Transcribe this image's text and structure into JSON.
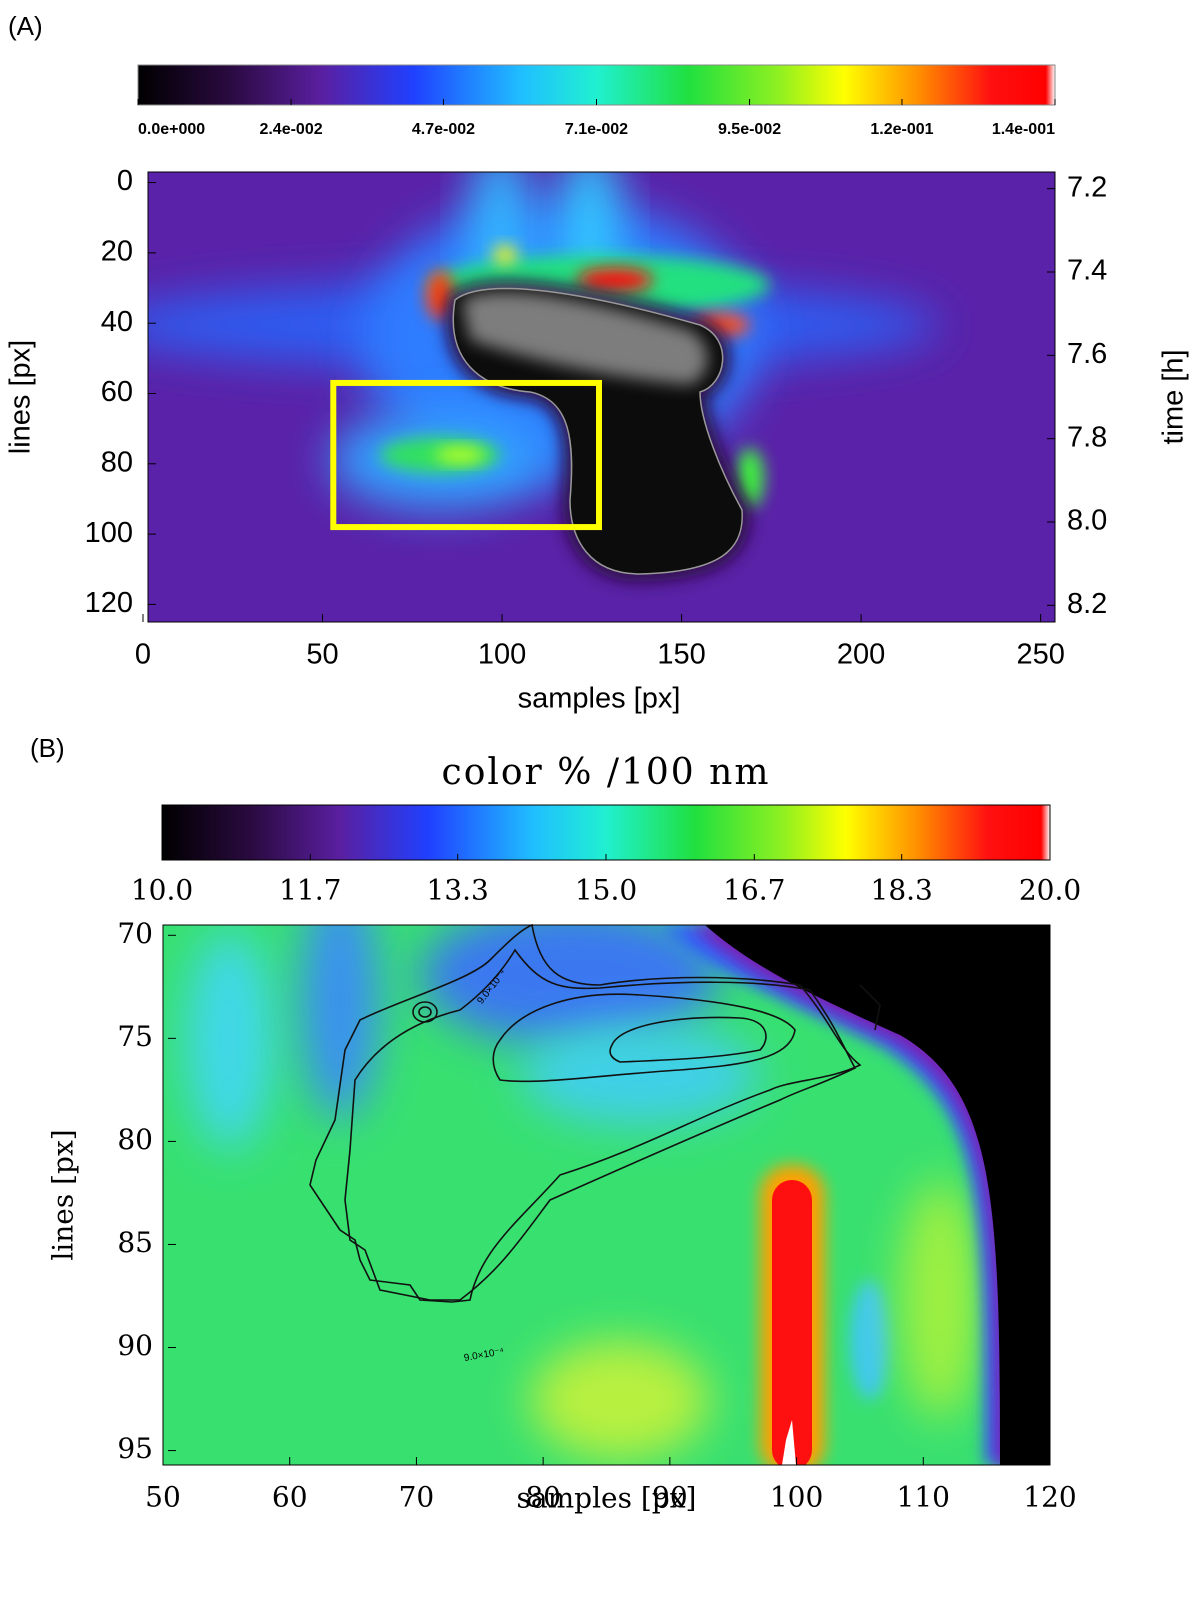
{
  "chart_data": [
    {
      "type": "heatmap",
      "panel_label": "(A)",
      "colorbar": {
        "clim": [
          0,
          0.142
        ],
        "ticks": [
          {
            "value": 0,
            "label": "0.0e+000"
          },
          {
            "value": 0.0237,
            "label": "2.4e-002"
          },
          {
            "value": 0.0473,
            "label": "4.7e-002"
          },
          {
            "value": 0.071,
            "label": "7.1e-002"
          },
          {
            "value": 0.0947,
            "label": "9.5e-002"
          },
          {
            "value": 0.1183,
            "label": "1.2e-001"
          },
          {
            "value": 0.142,
            "label": "1.4e-001"
          }
        ]
      },
      "xlabel": "samples [px]",
      "ylabel": "lines [px]",
      "y2label": "time [h]",
      "xlim": [
        0,
        254
      ],
      "xticks": [
        0,
        50,
        100,
        150,
        200,
        250
      ],
      "ylim": [
        -3,
        125
      ],
      "yticks": [
        0,
        20,
        40,
        60,
        80,
        100,
        120
      ],
      "y_reversed": true,
      "y2lim": [
        7.16,
        8.24
      ],
      "y2ticks": [
        7.2,
        7.4,
        7.6,
        7.8,
        {
          "value": 8,
          "label": "8.0"
        },
        8.2
      ],
      "box": {
        "x": [
          53,
          127
        ],
        "y": [
          57,
          98
        ],
        "color": "#ffff00"
      }
    },
    {
      "type": "heatmap",
      "panel_label": "(B)",
      "title": "color % /100 nm",
      "colorbar": {
        "clim": [
          10,
          20
        ],
        "ticks": [
          {
            "value": 10,
            "label": "10.0"
          },
          {
            "value": 11.67,
            "label": "11.7"
          },
          {
            "value": 13.33,
            "label": "13.3"
          },
          {
            "value": 15,
            "label": "15.0"
          },
          {
            "value": 16.67,
            "label": "16.7"
          },
          {
            "value": 18.33,
            "label": "18.3"
          },
          {
            "value": 20,
            "label": "20.0"
          }
        ]
      },
      "xlabel": "samples [px]",
      "ylabel": "lines [px]",
      "xlim": [
        50,
        120
      ],
      "xticks": [
        50,
        60,
        70,
        80,
        90,
        100,
        110,
        120
      ],
      "ylim": [
        69.5,
        95.7
      ],
      "yticks": [
        70,
        75,
        80,
        85,
        90,
        95
      ],
      "y_reversed": true,
      "contour_labels": [
        "9.0×10⁻⁴",
        "9.0×10⁻⁴"
      ]
    }
  ]
}
